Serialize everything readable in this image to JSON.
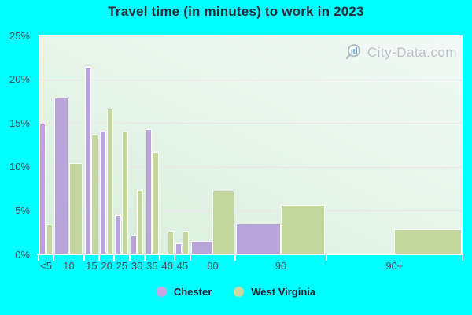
{
  "title": "Travel time (in minutes) to work in 2023",
  "watermark": "City-Data.com",
  "colors": {
    "page_background": "#00ffff",
    "title_text": "#2a2d3a",
    "axis_text": "#474d56",
    "legend_text": "#1f2330",
    "watermark_text": "#b4bdc4",
    "gridline": "#f0e1ec",
    "plot_gradient_top": "#f2f9f6",
    "plot_gradient_bottom": "#d9eeda",
    "chester_bar": "#b9a4da",
    "west_virginia_bar": "#c3d69b",
    "chester_legend": "#c6a9e2",
    "west_virginia_legend": "#cdd89e"
  },
  "y_axis": {
    "tick_labels": [
      "25%",
      "20%",
      "15%",
      "10%",
      "5%",
      "0%"
    ]
  },
  "legend": [
    {
      "name": "Chester",
      "color": "#c6a9e2"
    },
    {
      "name": "West Virginia",
      "color": "#cdd89e"
    }
  ],
  "chart_data": {
    "type": "bar",
    "title": "Travel time (in minutes) to work in 2023",
    "xlabel": "",
    "ylabel": "",
    "ylim": [
      0,
      25
    ],
    "grid": "horizontal",
    "gridline_step_pct": 5,
    "legend_position": "bottom",
    "categories": [
      "<5",
      "10",
      "15",
      "20",
      "25",
      "30",
      "35",
      "40",
      "45",
      "60",
      "90",
      "90+"
    ],
    "bin_width_units": [
      1,
      2,
      1,
      1,
      1,
      1,
      1,
      1,
      1,
      3,
      6,
      9
    ],
    "series": [
      {
        "name": "Chester",
        "color": "#b9a4da",
        "values": [
          14.9,
          17.9,
          21.4,
          14.1,
          4.5,
          2.2,
          14.3,
          0,
          1.3,
          1.5,
          3.5,
          0
        ]
      },
      {
        "name": "West Virginia",
        "color": "#c3d69b",
        "values": [
          3.4,
          10.4,
          13.7,
          16.6,
          14.0,
          7.3,
          11.7,
          2.7,
          2.7,
          7.3,
          5.7,
          2.9
        ]
      }
    ]
  }
}
